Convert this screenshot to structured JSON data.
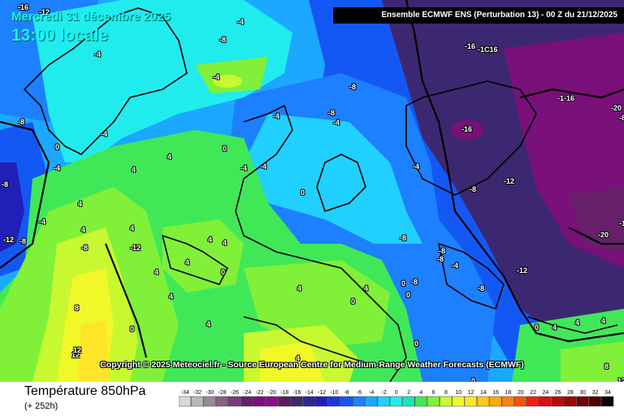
{
  "header": {
    "date": "Mercredi 31 décembre 2025",
    "local_time": "13:00 locale",
    "run_info": "Ensemble ECMWF ENS  (Perturbation 13)  -  00 Z du 21/12/2025"
  },
  "copyright": "Copyright © 2025 Meteociel.fr - Source European Centre for Medium-Range Weather Forecasts (ECMWF)",
  "footer": {
    "variable": "Température 850hPa",
    "step": "(+ 252h)"
  },
  "legend": {
    "labels": [
      "-34",
      "-32",
      "-30",
      "-28",
      "-26",
      "-24",
      "-22",
      "-20",
      "-18",
      "-16",
      "-14",
      "-12",
      "-10",
      "-8",
      "-6",
      "-4",
      "-2",
      "0",
      "2",
      "4",
      "6",
      "8",
      "10",
      "12",
      "14",
      "16",
      "18",
      "20",
      "22",
      "24",
      "26",
      "28",
      "30",
      "32",
      "34"
    ],
    "colors": [
      "#d8d8d8",
      "#b8b8b8",
      "#988898",
      "#886088",
      "#7a3c7a",
      "#66206a",
      "#7a107a",
      "#8c0c8c",
      "#5c1c5c",
      "#3c2870",
      "#302890",
      "#2020b8",
      "#1838dc",
      "#1458f4",
      "#1c80ff",
      "#1ca8ff",
      "#20d0ff",
      "#20ecee",
      "#18e8b4",
      "#40e858",
      "#80f038",
      "#c8f830",
      "#f0f828",
      "#ffe428",
      "#ffc818",
      "#ffa810",
      "#ff8010",
      "#ff5010",
      "#f02010",
      "#d81010",
      "#b80c0c",
      "#980808",
      "#700404",
      "#500000",
      "#100000"
    ]
  },
  "map_labels": [
    {
      "text": "-16"
    },
    {
      "text": "-12"
    },
    {
      "text": "-8"
    },
    {
      "text": "-4"
    },
    {
      "text": "-4"
    },
    {
      "text": "-8"
    },
    {
      "text": "-4"
    },
    {
      "text": "-8"
    },
    {
      "text": "-16"
    },
    {
      "text": "-1C16"
    },
    {
      "text": "-20"
    },
    {
      "text": "-1-16"
    },
    {
      "text": "-8"
    },
    {
      "text": "-4"
    },
    {
      "text": "-4"
    },
    {
      "text": "-16"
    },
    {
      "text": "-4"
    },
    {
      "text": "-4"
    },
    {
      "text": "0"
    },
    {
      "text": "0"
    },
    {
      "text": "4"
    },
    {
      "text": "4"
    },
    {
      "text": "4"
    },
    {
      "text": "-4"
    },
    {
      "text": "0"
    },
    {
      "text": "-4"
    },
    {
      "text": "-8"
    },
    {
      "text": "-12"
    },
    {
      "text": "-8"
    },
    {
      "text": "-4"
    },
    {
      "text": "4"
    },
    {
      "text": "4"
    },
    {
      "text": "-12"
    },
    {
      "text": "-8"
    },
    {
      "text": "-8"
    },
    {
      "text": "-8"
    },
    {
      "text": "-8"
    },
    {
      "text": "-4"
    },
    {
      "text": "-8"
    },
    {
      "text": "-12"
    },
    {
      "text": "-20"
    },
    {
      "text": "4"
    },
    {
      "text": "4"
    },
    {
      "text": "4"
    },
    {
      "text": "4"
    },
    {
      "text": "0"
    },
    {
      "text": "4"
    },
    {
      "text": "4"
    },
    {
      "text": "4"
    },
    {
      "text": "0"
    },
    {
      "text": "0"
    },
    {
      "text": "-8"
    },
    {
      "text": "0"
    },
    {
      "text": "4"
    },
    {
      "text": "4"
    },
    {
      "text": "8"
    },
    {
      "text": "4"
    },
    {
      "text": "12"
    },
    {
      "text": "12"
    },
    {
      "text": "0"
    },
    {
      "text": "0"
    },
    {
      "text": "8"
    },
    {
      "text": "4"
    },
    {
      "text": "0"
    },
    {
      "text": "-12"
    },
    {
      "text": "-8"
    },
    {
      "text": "-4"
    },
    {
      "text": "-12"
    },
    {
      "text": "-8"
    },
    {
      "text": "4"
    },
    {
      "text": "0"
    },
    {
      "text": "12"
    }
  ]
}
